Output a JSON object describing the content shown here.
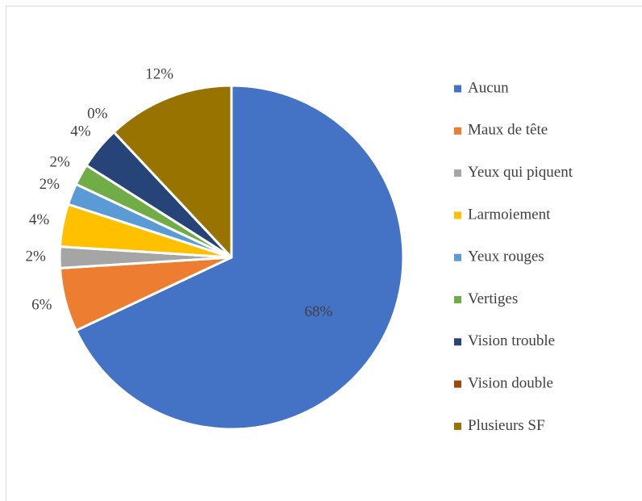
{
  "chart_data": {
    "type": "pie",
    "categories": [
      "Aucun",
      "Maux de tête",
      "Yeux qui piquent",
      "Larmoiement",
      "Yeux rouges",
      "Vertiges",
      "Vision trouble",
      "Vision double",
      "Plusieurs SF"
    ],
    "values": [
      68,
      6,
      2,
      4,
      2,
      2,
      4,
      0,
      12
    ],
    "value_labels": [
      "68%",
      "6%",
      "2%",
      "4%",
      "2%",
      "2%",
      "4%",
      "0%",
      "12%"
    ],
    "colors": [
      "#4472c4",
      "#ed7d31",
      "#a5a5a5",
      "#ffc000",
      "#5b9bd5",
      "#70ad47",
      "#264478",
      "#9e480e",
      "#997300"
    ],
    "legend": "right"
  }
}
